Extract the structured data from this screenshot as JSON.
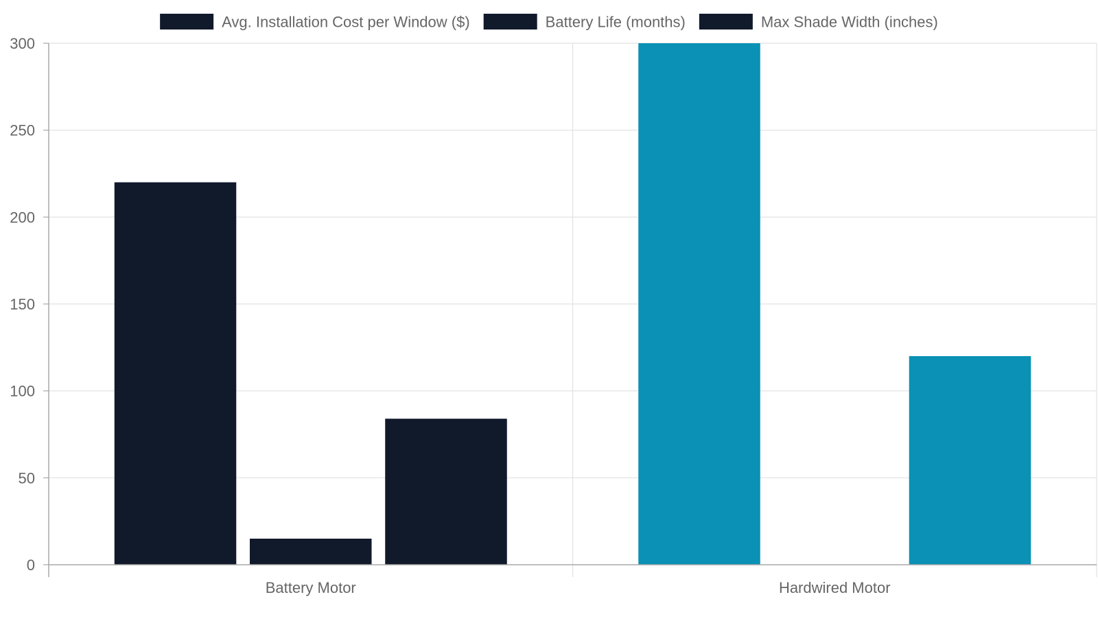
{
  "chart_data": {
    "type": "bar",
    "categories": [
      "Battery Motor",
      "Hardwired Motor"
    ],
    "series": [
      {
        "name": "Avg. Installation Cost per Window ($)",
        "values": [
          220,
          300
        ]
      },
      {
        "name": "Battery Life (months)",
        "values": [
          15,
          null
        ]
      },
      {
        "name": "Max Shade Width (inches)",
        "values": [
          84,
          120
        ]
      }
    ],
    "category_colors": [
      "#111a2b",
      "#0a91b5"
    ],
    "legend_swatch_color": "#111a2b",
    "ylim": [
      0,
      300
    ],
    "yticks": [
      0,
      50,
      100,
      150,
      200,
      250,
      300
    ],
    "grid": true,
    "legend_position": "top"
  }
}
